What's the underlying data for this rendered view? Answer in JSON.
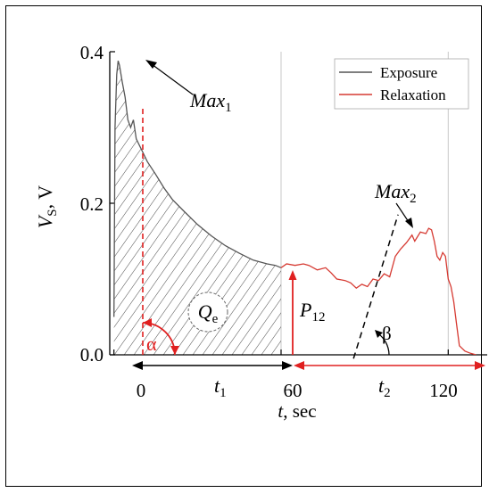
{
  "chart_data": {
    "type": "line",
    "xlabel": "t, sec",
    "ylabel": "Vs, V",
    "xlim": [
      -1.5,
      134
    ],
    "ylim": [
      0,
      0.4
    ],
    "x_ticks": [
      0,
      60,
      120
    ],
    "y_ticks": [
      0.0,
      0.2,
      0.4
    ],
    "y_tick_labels": [
      "0.0",
      "0.2",
      "0.4"
    ],
    "legend": {
      "position": "top-right",
      "entries": [
        "Exposure",
        "Relaxation"
      ]
    },
    "colors": {
      "exposure": "#555555",
      "relaxation": "#d63a32",
      "annotation_red": "#e02020",
      "grid": "#c8c8c8"
    },
    "series": [
      {
        "name": "Exposure",
        "x": [
          0,
          0.4,
          1,
          1.5,
          2,
          3,
          4,
          5,
          5.5,
          6,
          7,
          8,
          10,
          12,
          15,
          18,
          21,
          25,
          30,
          35,
          40,
          45,
          50,
          55,
          58,
          60
        ],
        "y": [
          0.05,
          0.3,
          0.37,
          0.388,
          0.382,
          0.36,
          0.34,
          0.31,
          0.305,
          0.3,
          0.31,
          0.285,
          0.27,
          0.255,
          0.238,
          0.22,
          0.205,
          0.19,
          0.172,
          0.157,
          0.144,
          0.134,
          0.125,
          0.12,
          0.118,
          0.115
        ]
      },
      {
        "name": "Relaxation",
        "x": [
          60,
          62,
          65,
          68,
          70,
          73,
          76,
          78,
          80,
          83,
          85,
          87,
          89,
          91,
          93,
          95,
          97,
          99,
          101,
          103,
          105,
          107,
          108,
          110,
          112,
          113,
          114,
          115,
          116,
          117,
          118,
          119,
          120,
          121,
          122,
          123,
          124,
          126,
          128,
          130
        ],
        "y": [
          0.115,
          0.12,
          0.118,
          0.12,
          0.118,
          0.112,
          0.115,
          0.108,
          0.1,
          0.098,
          0.095,
          0.088,
          0.093,
          0.09,
          0.1,
          0.098,
          0.107,
          0.103,
          0.13,
          0.14,
          0.148,
          0.158,
          0.15,
          0.162,
          0.16,
          0.167,
          0.165,
          0.15,
          0.13,
          0.125,
          0.135,
          0.13,
          0.1,
          0.09,
          0.07,
          0.04,
          0.012,
          0.005,
          0.002,
          0.0
        ]
      }
    ],
    "annotations": {
      "max1": {
        "base": "Max",
        "sub": "1",
        "x": 1.5,
        "y": 0.388
      },
      "max2": {
        "base": "Max",
        "sub": "2",
        "x": 112,
        "y": 0.165
      },
      "qe": {
        "base": "Q",
        "sub": "e"
      },
      "p12": {
        "base": "P",
        "sub": "12"
      },
      "t1": {
        "base": "t",
        "sub": "1"
      },
      "t2": {
        "base": "t",
        "sub": "2"
      },
      "alpha": "α",
      "beta": "β",
      "tangent": {
        "x": [
          86,
          102
        ],
        "y": [
          -0.005,
          0.185
        ]
      }
    }
  }
}
